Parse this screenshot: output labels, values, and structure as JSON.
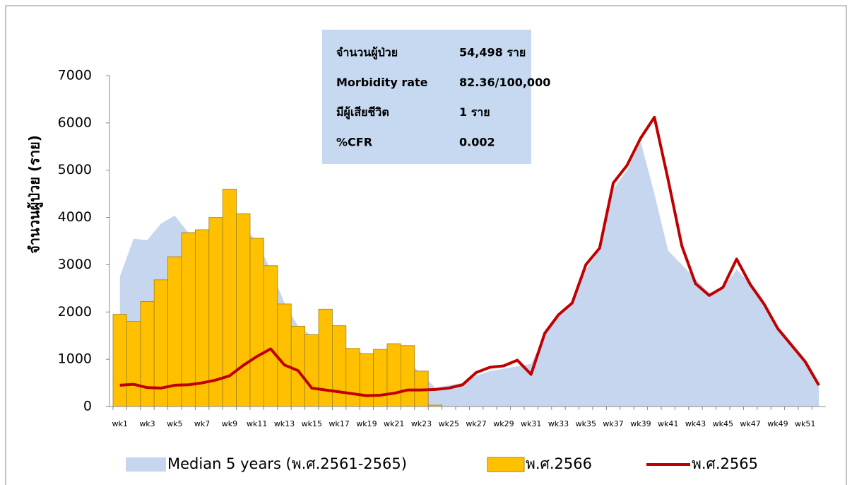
{
  "chart_data": {
    "type": "combo",
    "y_label": "จำนวนผู้ป่วย (ราย)",
    "categories": [
      "wk1",
      null,
      "wk3",
      null,
      "wk5",
      null,
      "wk7",
      null,
      "wk9",
      null,
      "wk11",
      null,
      "wk13",
      null,
      "wk15",
      null,
      "wk17",
      null,
      "wk19",
      null,
      "wk21",
      null,
      "wk23",
      null,
      "wk25",
      null,
      "wk27",
      null,
      "wk29",
      null,
      "wk31",
      null,
      "wk33",
      null,
      "wk35",
      null,
      "wk37",
      null,
      "wk39",
      null,
      "wk41",
      null,
      "wk43",
      null,
      "wk45",
      null,
      "wk47",
      null,
      "wk49",
      null,
      "wk51",
      null
    ],
    "ylim": [
      0,
      7000
    ],
    "yticks": [
      0,
      1000,
      2000,
      3000,
      4000,
      5000,
      6000,
      7000
    ],
    "series": [
      {
        "name": "Median 5 years (พ.ศ.2561-2565)",
        "type": "area",
        "color": "#c6d6ee",
        "values": [
          2750,
          3550,
          3520,
          3870,
          4040,
          3680,
          3700,
          3800,
          3900,
          3800,
          3500,
          2900,
          2200,
          1700,
          1500,
          1400,
          1300,
          1200,
          1100,
          1050,
          1000,
          950,
          700,
          400,
          450,
          500,
          650,
          750,
          800,
          850,
          900,
          1500,
          1900,
          2200,
          2900,
          3300,
          4600,
          5000,
          5600,
          4500,
          3300,
          3000,
          2700,
          2400,
          2500,
          2900,
          2600,
          2200,
          1700,
          1300,
          900,
          450
        ]
      },
      {
        "name": "พ.ศ.2566",
        "type": "bar",
        "color": "#ffc000",
        "values": [
          1950,
          1800,
          2220,
          2680,
          3170,
          3680,
          3740,
          4000,
          4600,
          4080,
          3560,
          2980,
          2170,
          1700,
          1520,
          2060,
          1710,
          1230,
          1120,
          1210,
          1330,
          1290,
          750,
          30,
          null,
          null,
          null,
          null,
          null,
          null,
          null,
          null,
          null,
          null,
          null,
          null,
          null,
          null,
          null,
          null,
          null,
          null,
          null,
          null,
          null,
          null,
          null,
          null,
          null,
          null,
          null,
          null
        ]
      },
      {
        "name": "พ.ศ.2565",
        "type": "line",
        "color": "#c00000",
        "values": [
          450,
          470,
          400,
          390,
          450,
          460,
          500,
          560,
          650,
          870,
          1060,
          1220,
          880,
          760,
          390,
          350,
          310,
          270,
          230,
          240,
          280,
          350,
          350,
          360,
          390,
          460,
          720,
          830,
          860,
          980,
          680,
          1550,
          1940,
          2190,
          3000,
          3350,
          4730,
          5100,
          5680,
          6120,
          4800,
          3400,
          2600,
          2350,
          2520,
          3120,
          2580,
          2170,
          1650,
          1300,
          950,
          450
        ]
      }
    ],
    "info_box": [
      [
        "จำนวนผู้ป่วย",
        "54,498 ราย"
      ],
      [
        "Morbidity rate",
        "82.36/100,000"
      ],
      [
        "มีผู้เสียชีวิต",
        "1 ราย"
      ],
      [
        "%CFR",
        "0.002"
      ]
    ]
  }
}
